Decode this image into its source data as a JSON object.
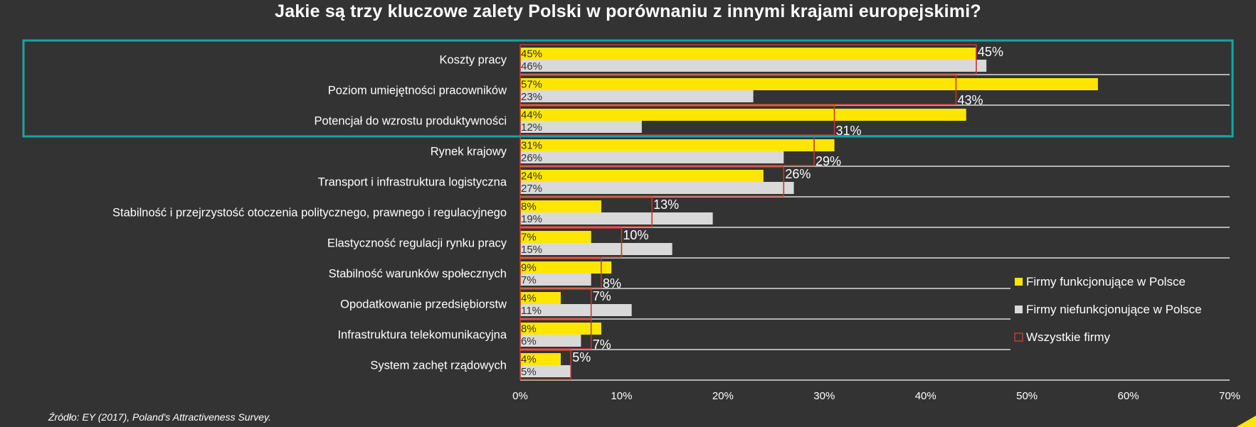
{
  "title": "Jakie są trzy kluczowe zalety Polski w porównaniu z innymi krajami europejskimi?",
  "source": "Źródło: EY (2017), Poland's Attractiveness Survey.",
  "colors": {
    "background": "#333333",
    "series1": "#ffe600",
    "series2": "#d9d9d9",
    "series3": "#c0392b",
    "highlight": "#1aa3a3",
    "grid": "#ffffff"
  },
  "chart_data": {
    "type": "bar",
    "orientation": "horizontal",
    "categories": [
      "Koszty pracy",
      "Poziom umiejętności pracowników",
      "Potencjał do wzrostu produktywności",
      "Rynek krajowy",
      "Transport i infrastruktura logistyczna",
      "Stabilność i przejrzystość otoczenia politycznego, prawnego i regulacyjnego",
      "Elastyczność regulacji rynku pracy",
      "Stabilność warunków społecznych",
      "Opodatkowanie przedsiębiorstw",
      "Infrastruktura telekomunikacyjna",
      "System zachęt rządowych"
    ],
    "series": [
      {
        "name": "Firmy funkcjonujące w Polsce",
        "values": [
          45,
          57,
          44,
          31,
          24,
          8,
          7,
          9,
          4,
          8,
          4
        ],
        "labels": [
          "45%",
          "57%",
          "44%",
          "31%",
          "24%",
          "8%",
          "7%",
          "9%",
          "4%",
          "8%",
          "4%"
        ]
      },
      {
        "name": "Firmy niefunkcjonujące w Polsce",
        "values": [
          46,
          23,
          12,
          26,
          27,
          19,
          15,
          7,
          11,
          6,
          5
        ],
        "labels": [
          "46%",
          "23%",
          "12%",
          "26%",
          "27%",
          "19%",
          "15%",
          "7%",
          "11%",
          "6%",
          "5%"
        ]
      },
      {
        "name": "Wszystkie firmy",
        "values": [
          45,
          43,
          31,
          29,
          26,
          13,
          10,
          8,
          7,
          7,
          5
        ],
        "labels": [
          "45%",
          "43%",
          "31%",
          "29%",
          "26%",
          "13%",
          "10%",
          "8%",
          "7%",
          "7%",
          "5%"
        ]
      }
    ],
    "x_ticks": [
      "0%",
      "10%",
      "20%",
      "30%",
      "40%",
      "50%",
      "60%",
      "70%"
    ],
    "xlim": [
      0,
      70
    ],
    "legend_position": "bottom-right",
    "highlighted_categories": 3
  }
}
